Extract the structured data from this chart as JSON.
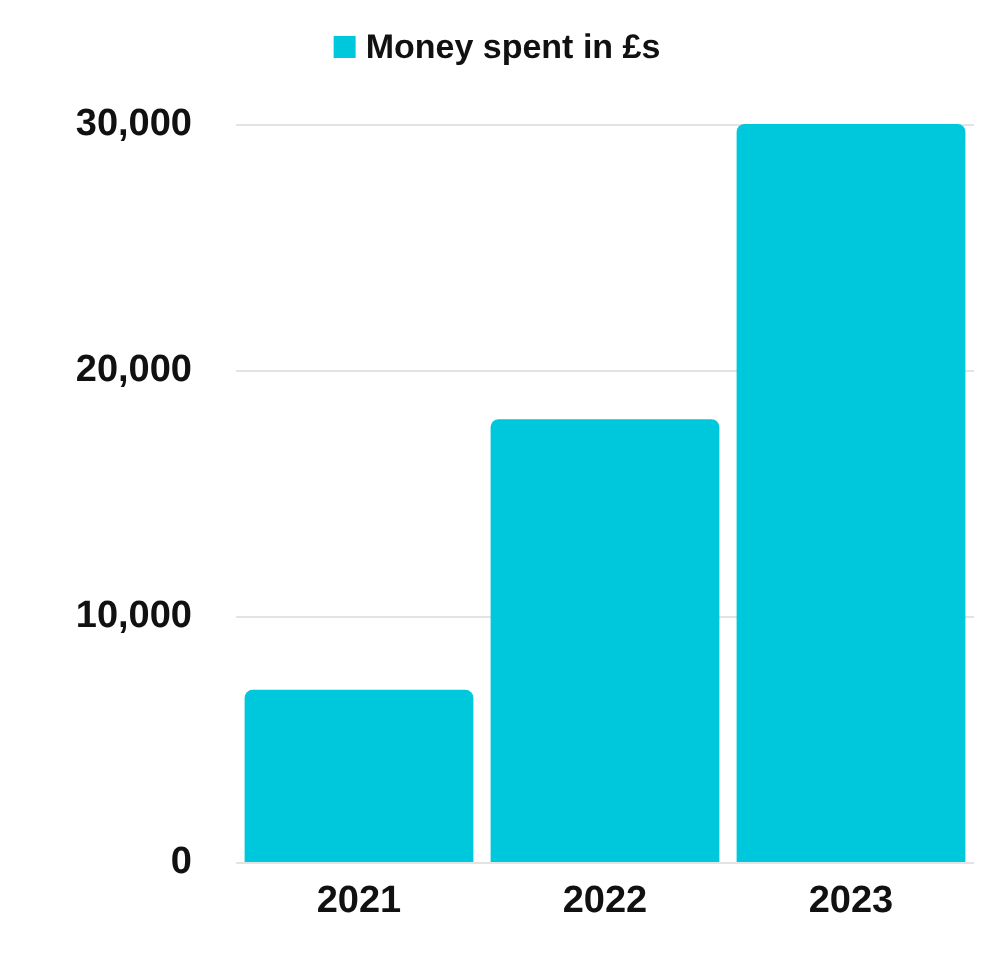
{
  "chart_data": {
    "type": "bar",
    "categories": [
      "2021",
      "2022",
      "2023"
    ],
    "series": [
      {
        "name": "Money spent in £s",
        "color": "#00c8dc",
        "values": [
          7000,
          18000,
          30000
        ]
      }
    ],
    "ylim": [
      0,
      30000
    ],
    "yticks": [
      {
        "value": 0,
        "label": "0"
      },
      {
        "value": 10000,
        "label": "10,000"
      },
      {
        "value": 20000,
        "label": "20,000"
      },
      {
        "value": 30000,
        "label": "30,000"
      }
    ],
    "grid": "y",
    "legend": "top"
  }
}
